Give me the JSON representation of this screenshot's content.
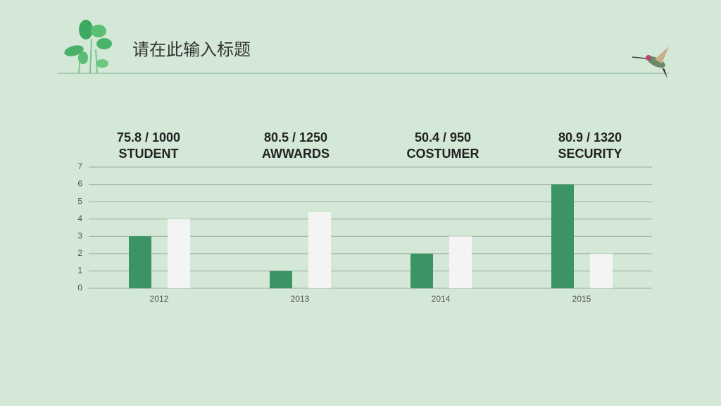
{
  "title": "请在此输入标题",
  "chart_data": {
    "type": "bar",
    "categories": [
      "2012",
      "2013",
      "2014",
      "2015"
    ],
    "series": [
      {
        "color": "#3a9463",
        "values": [
          3,
          1,
          2,
          6
        ]
      },
      {
        "color": "#f4f4f4",
        "values": [
          4,
          4.4,
          3,
          2
        ]
      }
    ],
    "ylim": [
      0,
      7
    ],
    "yticks": [
      0,
      1,
      2,
      3,
      4,
      5,
      6,
      7
    ],
    "grid": true,
    "annotations": [
      {
        "text": "75.8 / 1000",
        "label": "STUDENT"
      },
      {
        "text": "80.5 / 1250",
        "label": "AWWARDS"
      },
      {
        "text": "50.4 / 950",
        "label": "COSTUMER"
      },
      {
        "text": "80.9 / 1320",
        "label": "SECURITY"
      }
    ]
  }
}
